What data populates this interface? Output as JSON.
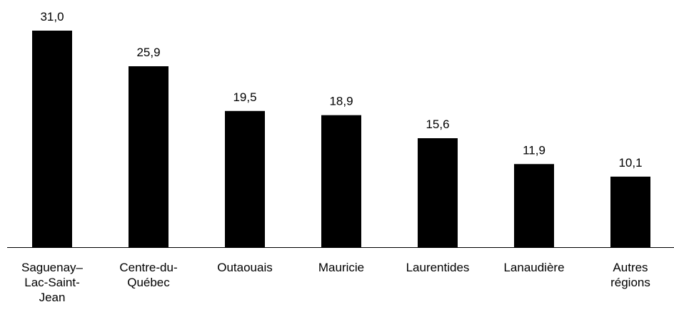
{
  "colors": {
    "bar": "#000000",
    "axis": "#000000",
    "background": "#ffffff"
  },
  "chart_data": {
    "type": "bar",
    "title": "",
    "xlabel": "",
    "ylabel": "",
    "categories": [
      "Saguenay–Lac-Saint-Jean",
      "Centre-du-Québec",
      "Outaouais",
      "Mauricie",
      "Laurentides",
      "Lanaudière",
      "Autres régions"
    ],
    "category_label_lines": [
      [
        "Saguenay–",
        "Lac-Saint-",
        "Jean"
      ],
      [
        "Centre-du-",
        "Québec"
      ],
      [
        "Outaouais"
      ],
      [
        "Mauricie"
      ],
      [
        "Laurentides"
      ],
      [
        "Lanaudière"
      ],
      [
        "Autres",
        "régions"
      ]
    ],
    "values": [
      31.0,
      25.9,
      19.5,
      18.9,
      15.6,
      11.9,
      10.1
    ],
    "value_labels": [
      "31,0",
      "25,9",
      "19,5",
      "18,9",
      "15,6",
      "11,9",
      "10,1"
    ],
    "ylim": [
      0,
      31.0
    ],
    "grid": false,
    "legend": "none"
  }
}
